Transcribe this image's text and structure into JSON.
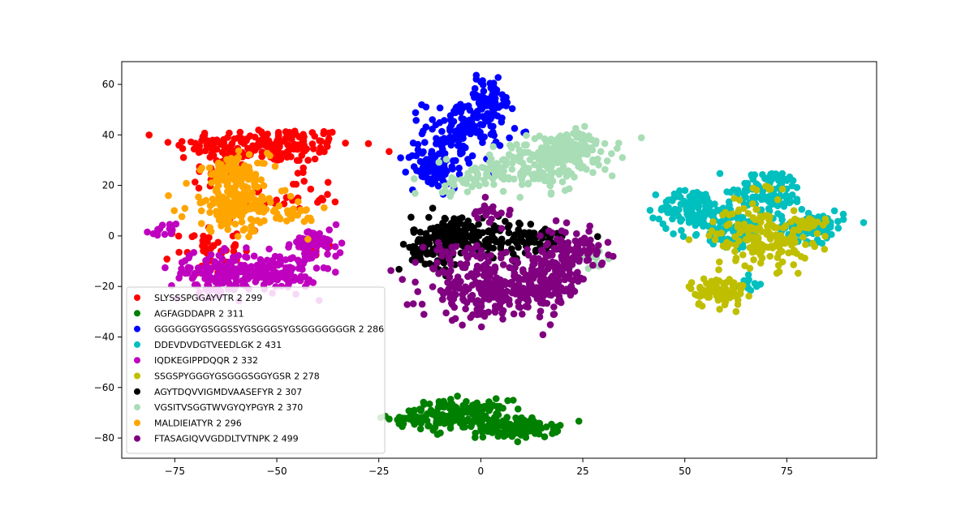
{
  "chart_data": {
    "type": "scatter",
    "title": "",
    "xlabel": "",
    "ylabel": "",
    "xlim": [
      -88,
      97
    ],
    "ylim": [
      -88,
      69
    ],
    "x_ticks": [
      -75,
      -50,
      -25,
      0,
      25,
      50,
      75
    ],
    "y_ticks": [
      -80,
      -60,
      -40,
      -20,
      0,
      20,
      40,
      60
    ],
    "x_tick_labels": [
      "−75",
      "−50",
      "−25",
      "0",
      "25",
      "50",
      "75"
    ],
    "y_tick_labels": [
      "−80",
      "−60",
      "−40",
      "−20",
      "0",
      "20",
      "40",
      "60"
    ],
    "grid": false,
    "legend_position": "lower-left",
    "series": [
      {
        "name": "SLYSSSPGGAYVTR 2 299",
        "color": "#ff0000",
        "clusters": [
          {
            "cx": -53,
            "cy": 36,
            "sx": 11,
            "sy": 3.5,
            "n": 180
          },
          {
            "cx": -63,
            "cy": 26,
            "sx": 4,
            "sy": 5,
            "n": 25
          },
          {
            "cx": -46,
            "cy": 16,
            "sx": 6,
            "sy": 6,
            "n": 30
          },
          {
            "cx": -67,
            "cy": -5,
            "sx": 4,
            "sy": 5,
            "n": 40
          },
          {
            "cx": -38,
            "cy": -6,
            "sx": 2,
            "sy": 2,
            "n": 6
          }
        ]
      },
      {
        "name": "AGFAGDDAPR 2 311",
        "color": "#008000",
        "clusters": [
          {
            "cx": -17,
            "cy": -72,
            "sx": 3,
            "sy": 1.5,
            "n": 25
          },
          {
            "cx": -5,
            "cy": -71,
            "sx": 6,
            "sy": 3,
            "n": 170
          },
          {
            "cx": 9,
            "cy": -76,
            "sx": 5,
            "sy": 2,
            "n": 110
          }
        ]
      },
      {
        "name": "GGGGGGYGSGGSSYGSGGGSYGSGGGGGGGR 2 286",
        "color": "#0000ff",
        "clusters": [
          {
            "cx": -4,
            "cy": 42,
            "sx": 5,
            "sy": 6,
            "n": 120
          },
          {
            "cx": 2,
            "cy": 54,
            "sx": 3,
            "sy": 4,
            "n": 70
          },
          {
            "cx": -12,
            "cy": 27,
            "sx": 3,
            "sy": 4,
            "n": 90
          }
        ]
      },
      {
        "name": "DDEVDVDGTVEEDLGK 2 431",
        "color": "#00bfbf",
        "clusters": [
          {
            "cx": 52,
            "cy": 11,
            "sx": 4,
            "sy": 4,
            "n": 110
          },
          {
            "cx": 61,
            "cy": 2,
            "sx": 5,
            "sy": 4,
            "n": 90
          },
          {
            "cx": 71,
            "cy": 18,
            "sx": 4,
            "sy": 4,
            "n": 110
          },
          {
            "cx": 81,
            "cy": 4,
            "sx": 4,
            "sy": 3,
            "n": 90
          },
          {
            "cx": 66,
            "cy": -20,
            "sx": 1.5,
            "sy": 2,
            "n": 15
          }
        ]
      },
      {
        "name": "IQDKEGIPPDQQR 2 332",
        "color": "#bf00bf",
        "clusters": [
          {
            "cx": -64,
            "cy": -15,
            "sx": 6,
            "sy": 4,
            "n": 150
          },
          {
            "cx": -50,
            "cy": -14,
            "sx": 5,
            "sy": 4,
            "n": 120
          },
          {
            "cx": -40,
            "cy": -3,
            "sx": 3,
            "sy": 3,
            "n": 60
          },
          {
            "cx": -78,
            "cy": 2,
            "sx": 2,
            "sy": 1.5,
            "n": 15
          }
        ]
      },
      {
        "name": "SSGSPYGGGYGSGGGSGGYGSR 2 278",
        "color": "#bfbf00",
        "clusters": [
          {
            "cx": 69,
            "cy": 0,
            "sx": 6,
            "sy": 6,
            "n": 160
          },
          {
            "cx": 58,
            "cy": -22,
            "sx": 3.5,
            "sy": 3,
            "n": 90
          },
          {
            "cx": 83,
            "cy": 5,
            "sx": 2,
            "sy": 2,
            "n": 15
          },
          {
            "cx": 69,
            "cy": 18,
            "sx": 2,
            "sy": 2,
            "n": 8
          }
        ]
      },
      {
        "name": "AGYTDQVVIGMDVAASEFYR 2 307",
        "color": "#000000",
        "clusters": [
          {
            "cx": -5,
            "cy": 0,
            "sx": 6,
            "sy": 4,
            "n": 170
          },
          {
            "cx": 12,
            "cy": -2,
            "sx": 6,
            "sy": 3,
            "n": 70
          },
          {
            "cx": -12,
            "cy": -8,
            "sx": 3,
            "sy": 3,
            "n": 40
          }
        ]
      },
      {
        "name": "VGSITVSGGTWVGYQYPGYR 2 370",
        "color": "#a8ddb5",
        "clusters": [
          {
            "cx": 14,
            "cy": 28,
            "sx": 7,
            "sy": 5,
            "n": 160
          },
          {
            "cx": 22,
            "cy": 35,
            "sx": 5,
            "sy": 3,
            "n": 120
          },
          {
            "cx": -4,
            "cy": 22,
            "sx": 4,
            "sy": 3,
            "n": 40
          },
          {
            "cx": 28,
            "cy": -10,
            "sx": 2,
            "sy": 2,
            "n": 10
          }
        ]
      },
      {
        "name": "MALDIEIATYR 2 296",
        "color": "#ffa500",
        "clusters": [
          {
            "cx": -60,
            "cy": 12,
            "sx": 6,
            "sy": 5,
            "n": 190
          },
          {
            "cx": -60,
            "cy": 26,
            "sx": 4,
            "sy": 3,
            "n": 80
          },
          {
            "cx": -45,
            "cy": 8,
            "sx": 3,
            "sy": 3,
            "n": 20
          }
        ]
      },
      {
        "name": "FTASAGIQVVGDDLTVTNPK 2 499",
        "color": "#800080",
        "clusters": [
          {
            "cx": 2,
            "cy": -22,
            "sx": 8,
            "sy": 5,
            "n": 230
          },
          {
            "cx": 16,
            "cy": -18,
            "sx": 5,
            "sy": 5,
            "n": 140
          },
          {
            "cx": 22,
            "cy": -6,
            "sx": 4,
            "sy": 4,
            "n": 100
          },
          {
            "cx": -5,
            "cy": -8,
            "sx": 4,
            "sy": 3,
            "n": 40
          },
          {
            "cx": 2,
            "cy": 10,
            "sx": 3,
            "sy": 2,
            "n": 20
          }
        ]
      }
    ]
  }
}
